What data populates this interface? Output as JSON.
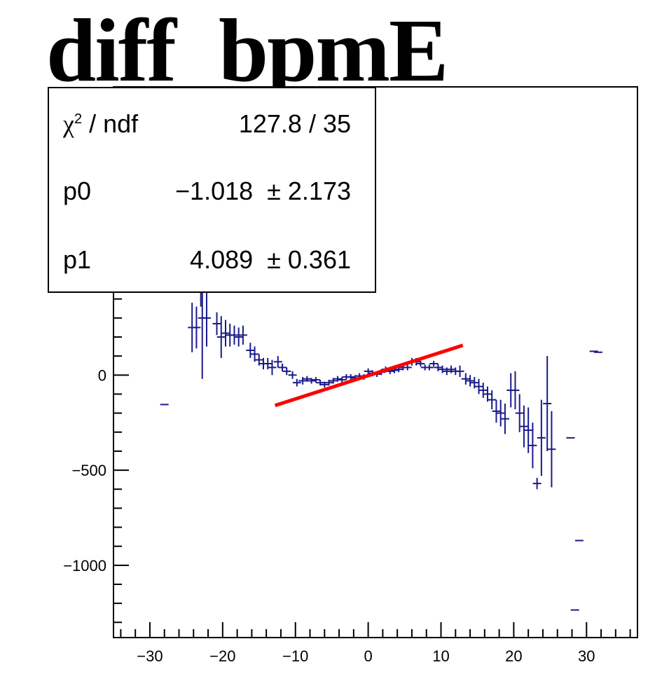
{
  "title": "diff_bpmE",
  "stats": {
    "chi2_label_symbol": "χ",
    "chi2_label_sup": "2",
    "chi2_label_rest": " / ndf",
    "chi2_value": "127.8 / 35",
    "p0_label": "p0",
    "p0_value": "−1.018  ± 2.173",
    "p1_label": "p1",
    "p1_value": "4.089  ± 0.361"
  },
  "colors": {
    "data": "#1a1a8c",
    "fit": "#ff0000",
    "axis": "#000000"
  },
  "chart_data": {
    "type": "scatter",
    "title": "diff_bpmE",
    "xlabel": "",
    "ylabel": "",
    "xlim": [
      -35,
      37
    ],
    "ylim": [
      -1380,
      1515
    ],
    "x_ticks": [
      -30,
      -20,
      -10,
      0,
      10,
      20,
      30
    ],
    "x_tick_labels": [
      "−30",
      "−20",
      "−10",
      "0",
      "10",
      "20",
      "30"
    ],
    "y_ticks": [
      0,
      -500,
      -1000
    ],
    "y_tick_labels": [
      "0",
      "−500",
      "−1000"
    ],
    "series": [
      {
        "points": [
          {
            "x": -28,
            "y": -155,
            "err": 0
          },
          {
            "x": -24.2,
            "y": 250,
            "err": 130
          },
          {
            "x": -23.6,
            "y": 250,
            "err": 110
          },
          {
            "x": -22.8,
            "y": 300,
            "err": 320
          },
          {
            "x": -22.2,
            "y": 300,
            "err": 150
          },
          {
            "x": -20.8,
            "y": 270,
            "err": 60
          },
          {
            "x": -20.2,
            "y": 200,
            "err": 110
          },
          {
            "x": -19.6,
            "y": 220,
            "err": 70
          },
          {
            "x": -19.0,
            "y": 210,
            "err": 60
          },
          {
            "x": -18.4,
            "y": 210,
            "err": 50
          },
          {
            "x": -17.8,
            "y": 200,
            "err": 50
          },
          {
            "x": -17.2,
            "y": 210,
            "err": 50
          },
          {
            "x": -16.2,
            "y": 130,
            "err": 40
          },
          {
            "x": -15.6,
            "y": 110,
            "err": 40
          },
          {
            "x": -15.0,
            "y": 80,
            "err": 30
          },
          {
            "x": -14.4,
            "y": 60,
            "err": 30
          },
          {
            "x": -13.8,
            "y": 60,
            "err": 30
          },
          {
            "x": -13.2,
            "y": 40,
            "err": 40
          },
          {
            "x": -12.4,
            "y": 70,
            "err": 30
          },
          {
            "x": -11.8,
            "y": 40,
            "err": 20
          },
          {
            "x": -11.2,
            "y": 20,
            "err": 20
          },
          {
            "x": -10.4,
            "y": 0,
            "err": 20
          },
          {
            "x": -9.8,
            "y": -40,
            "err": 20
          },
          {
            "x": -9.0,
            "y": -30,
            "err": 20
          },
          {
            "x": -8.4,
            "y": -20,
            "err": 15
          },
          {
            "x": -7.8,
            "y": -30,
            "err": 15
          },
          {
            "x": -7.2,
            "y": -25,
            "err": 15
          },
          {
            "x": -6.6,
            "y": -40,
            "err": 15
          },
          {
            "x": -6.0,
            "y": -50,
            "err": 15
          },
          {
            "x": -5.4,
            "y": -40,
            "err": 15
          },
          {
            "x": -4.8,
            "y": -30,
            "err": 15
          },
          {
            "x": -4.2,
            "y": -20,
            "err": 15
          },
          {
            "x": -3.6,
            "y": -25,
            "err": 15
          },
          {
            "x": -3.0,
            "y": -10,
            "err": 15
          },
          {
            "x": -2.4,
            "y": -10,
            "err": 15
          },
          {
            "x": -1.8,
            "y": -15,
            "err": 15
          },
          {
            "x": -1.2,
            "y": -5,
            "err": 15
          },
          {
            "x": -0.6,
            "y": -10,
            "err": 15
          },
          {
            "x": 0.0,
            "y": 20,
            "err": 15
          },
          {
            "x": 0.6,
            "y": 10,
            "err": 15
          },
          {
            "x": 1.2,
            "y": 5,
            "err": 15
          },
          {
            "x": 1.8,
            "y": 15,
            "err": 15
          },
          {
            "x": 2.4,
            "y": 30,
            "err": 15
          },
          {
            "x": 3.0,
            "y": 20,
            "err": 15
          },
          {
            "x": 3.6,
            "y": 25,
            "err": 15
          },
          {
            "x": 4.2,
            "y": 30,
            "err": 15
          },
          {
            "x": 4.8,
            "y": 40,
            "err": 15
          },
          {
            "x": 5.4,
            "y": 40,
            "err": 15
          },
          {
            "x": 6.0,
            "y": 70,
            "err": 20
          },
          {
            "x": 6.6,
            "y": 70,
            "err": 20
          },
          {
            "x": 7.2,
            "y": 60,
            "err": 15
          },
          {
            "x": 7.8,
            "y": 40,
            "err": 15
          },
          {
            "x": 8.4,
            "y": 40,
            "err": 15
          },
          {
            "x": 9.0,
            "y": 60,
            "err": 15
          },
          {
            "x": 9.6,
            "y": 40,
            "err": 20
          },
          {
            "x": 10.2,
            "y": 30,
            "err": 20
          },
          {
            "x": 10.8,
            "y": 20,
            "err": 20
          },
          {
            "x": 11.4,
            "y": 30,
            "err": 20
          },
          {
            "x": 12.0,
            "y": 20,
            "err": 20
          },
          {
            "x": 12.6,
            "y": 20,
            "err": 30
          },
          {
            "x": 13.4,
            "y": -20,
            "err": 30
          },
          {
            "x": 14.0,
            "y": -30,
            "err": 30
          },
          {
            "x": 14.6,
            "y": -40,
            "err": 30
          },
          {
            "x": 15.2,
            "y": -60,
            "err": 40
          },
          {
            "x": 15.8,
            "y": -80,
            "err": 40
          },
          {
            "x": 16.4,
            "y": -100,
            "err": 40
          },
          {
            "x": 17.0,
            "y": -130,
            "err": 50
          },
          {
            "x": 17.6,
            "y": -190,
            "err": 60
          },
          {
            "x": 18.2,
            "y": -200,
            "err": 70
          },
          {
            "x": 18.8,
            "y": -230,
            "err": 80
          },
          {
            "x": 19.6,
            "y": -80,
            "err": 90
          },
          {
            "x": 20.2,
            "y": -80,
            "err": 100
          },
          {
            "x": 20.8,
            "y": -200,
            "err": 100
          },
          {
            "x": 21.4,
            "y": -270,
            "err": 110
          },
          {
            "x": 22.0,
            "y": -290,
            "err": 120
          },
          {
            "x": 22.6,
            "y": -370,
            "err": 120
          },
          {
            "x": 23.2,
            "y": -570,
            "err": 30
          },
          {
            "x": 23.8,
            "y": -330,
            "err": 200
          },
          {
            "x": 24.6,
            "y": -150,
            "err": 250
          },
          {
            "x": 25.2,
            "y": -390,
            "err": 200
          },
          {
            "x": 27.8,
            "y": -330,
            "err": 0
          },
          {
            "x": 28.4,
            "y": -1235,
            "err": 0
          },
          {
            "x": 29.0,
            "y": -870,
            "err": 0
          },
          {
            "x": 31.0,
            "y": 125,
            "err": 0
          },
          {
            "x": 31.6,
            "y": 120,
            "err": 0
          },
          {
            "x": -23.0,
            "y": 440,
            "err": 80
          }
        ]
      }
    ],
    "fit": {
      "p0": -1.018,
      "p1": 4.089,
      "x_range": [
        -12.8,
        13.0
      ],
      "scale": 3.0
    }
  }
}
